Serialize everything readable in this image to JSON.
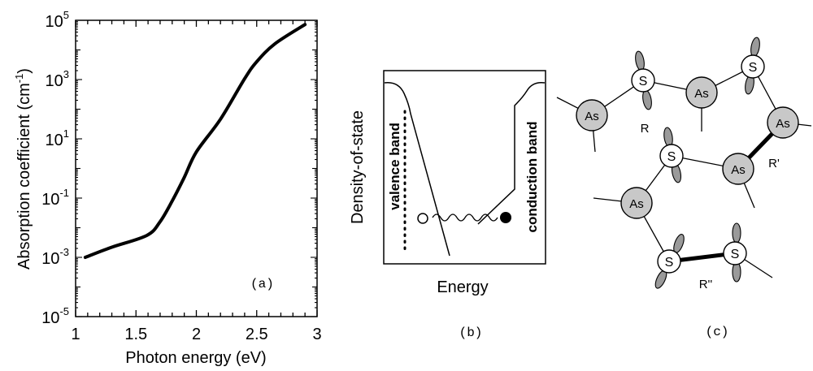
{
  "chart_data": {
    "type": "line",
    "panel_label": "(a)",
    "xlabel": "Photon energy (eV)",
    "ylabel_main": "Absorption coefficient (cm",
    "ylabel_sup": "-1",
    "ylabel_end": ")",
    "xlim": [
      1,
      3
    ],
    "ylim": [
      1e-05,
      100000.0
    ],
    "yscale": "log",
    "x_ticks": [
      "1",
      "1.5",
      "2",
      "2.5",
      "3"
    ],
    "y_tick_base": "10",
    "y_tick_exponents": [
      "5",
      "3",
      "1",
      "-1",
      "-3",
      "-5"
    ],
    "grid": false,
    "series": [
      {
        "name": "absorption",
        "x": [
          1.08,
          1.3,
          1.59,
          1.7,
          1.8,
          1.9,
          2.0,
          2.2,
          2.4,
          2.5,
          2.65,
          2.9
        ],
        "y": [
          0.001,
          0.0022,
          0.0055,
          0.016,
          0.08,
          0.5,
          3.6,
          46,
          1070,
          4000,
          16000,
          72000
        ]
      }
    ]
  },
  "diagram_b": {
    "ylabel": "Density-of-state",
    "xlabel": "Energy",
    "valence_label": "valence band",
    "conduction_label": "conduction band",
    "panel_label": "(b)"
  },
  "diagram_c": {
    "atom_as": "As",
    "atom_s": "S",
    "ring_r": "R",
    "ring_r1": "R'",
    "ring_r2": "R''",
    "panel_label": "(c)"
  }
}
